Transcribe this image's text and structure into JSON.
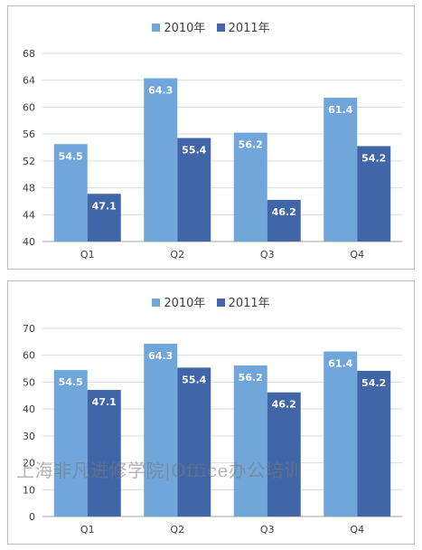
{
  "colors": {
    "series_2010": "#71a6db",
    "series_2011": "#4166a8",
    "grid": "#d9d9d9",
    "axis_text": "#404040"
  },
  "watermark": "上海非凡进修学院|Office办公培训",
  "chart_data": [
    {
      "type": "bar",
      "categories": [
        "Q1",
        "Q2",
        "Q3",
        "Q4"
      ],
      "series": [
        {
          "name": "2010年",
          "values": [
            54.5,
            64.3,
            56.2,
            61.4
          ]
        },
        {
          "name": "2011年",
          "values": [
            47.1,
            55.4,
            46.2,
            54.2
          ]
        }
      ],
      "ylim": [
        40,
        68
      ],
      "yticks": [
        40,
        44,
        48,
        52,
        56,
        60,
        64,
        68
      ],
      "grid": true,
      "legend": "top-center",
      "data_labels": true
    },
    {
      "type": "bar",
      "categories": [
        "Q1",
        "Q2",
        "Q3",
        "Q4"
      ],
      "series": [
        {
          "name": "2010年",
          "values": [
            54.5,
            64.3,
            56.2,
            61.4
          ]
        },
        {
          "name": "2011年",
          "values": [
            47.1,
            55.4,
            46.2,
            54.2
          ]
        }
      ],
      "ylim": [
        0,
        70
      ],
      "yticks": [
        0,
        10,
        20,
        30,
        40,
        50,
        60,
        70
      ],
      "grid": true,
      "legend": "top-center",
      "data_labels": true
    }
  ]
}
